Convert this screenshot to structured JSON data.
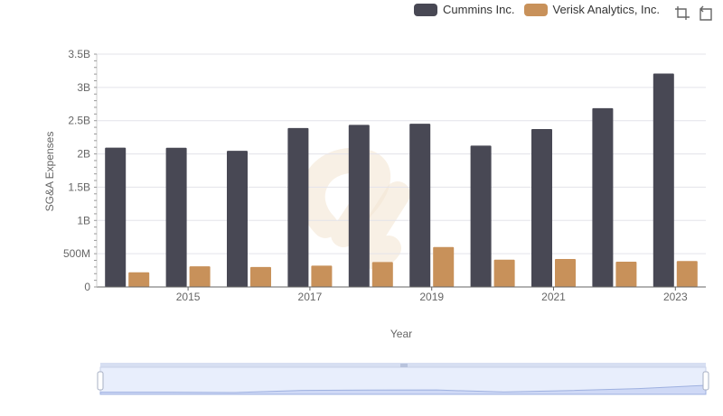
{
  "legend": [
    {
      "name": "Cummins Inc.",
      "color": "#484854"
    },
    {
      "name": "Verisk Analytics, Inc.",
      "color": "#c8915a"
    }
  ],
  "toolbar": {
    "icons": [
      "crop-icon",
      "restore-icon"
    ]
  },
  "chart_data": {
    "type": "bar",
    "title": "",
    "xlabel": "Year",
    "ylabel": "SG&A Expenses",
    "x": [
      2014,
      2015,
      2016,
      2017,
      2018,
      2019,
      2020,
      2021,
      2022,
      2023
    ],
    "x_tick_labels": [
      "2015",
      "2017",
      "2019",
      "2021",
      "2023"
    ],
    "y_tick_labels": [
      "0",
      "500M",
      "1B",
      "1.5B",
      "2B",
      "2.5B",
      "3B",
      "3.5B"
    ],
    "ylim": [
      0,
      3500000000
    ],
    "grid": true,
    "legend_position": "top-right",
    "series": [
      {
        "name": "Cummins Inc.",
        "color": "#484854",
        "values": [
          2095000000,
          2092000000,
          2046000000,
          2390000000,
          2437000000,
          2454000000,
          2125000000,
          2374000000,
          2687000000,
          3208000000
        ]
      },
      {
        "name": "Verisk Analytics, Inc.",
        "color": "#c8915a",
        "values": [
          220000000,
          310000000,
          300000000,
          320000000,
          375000000,
          600000000,
          410000000,
          420000000,
          380000000,
          390000000
        ]
      }
    ]
  },
  "data_zoom": {
    "start_percent": 0,
    "end_percent": 100
  }
}
